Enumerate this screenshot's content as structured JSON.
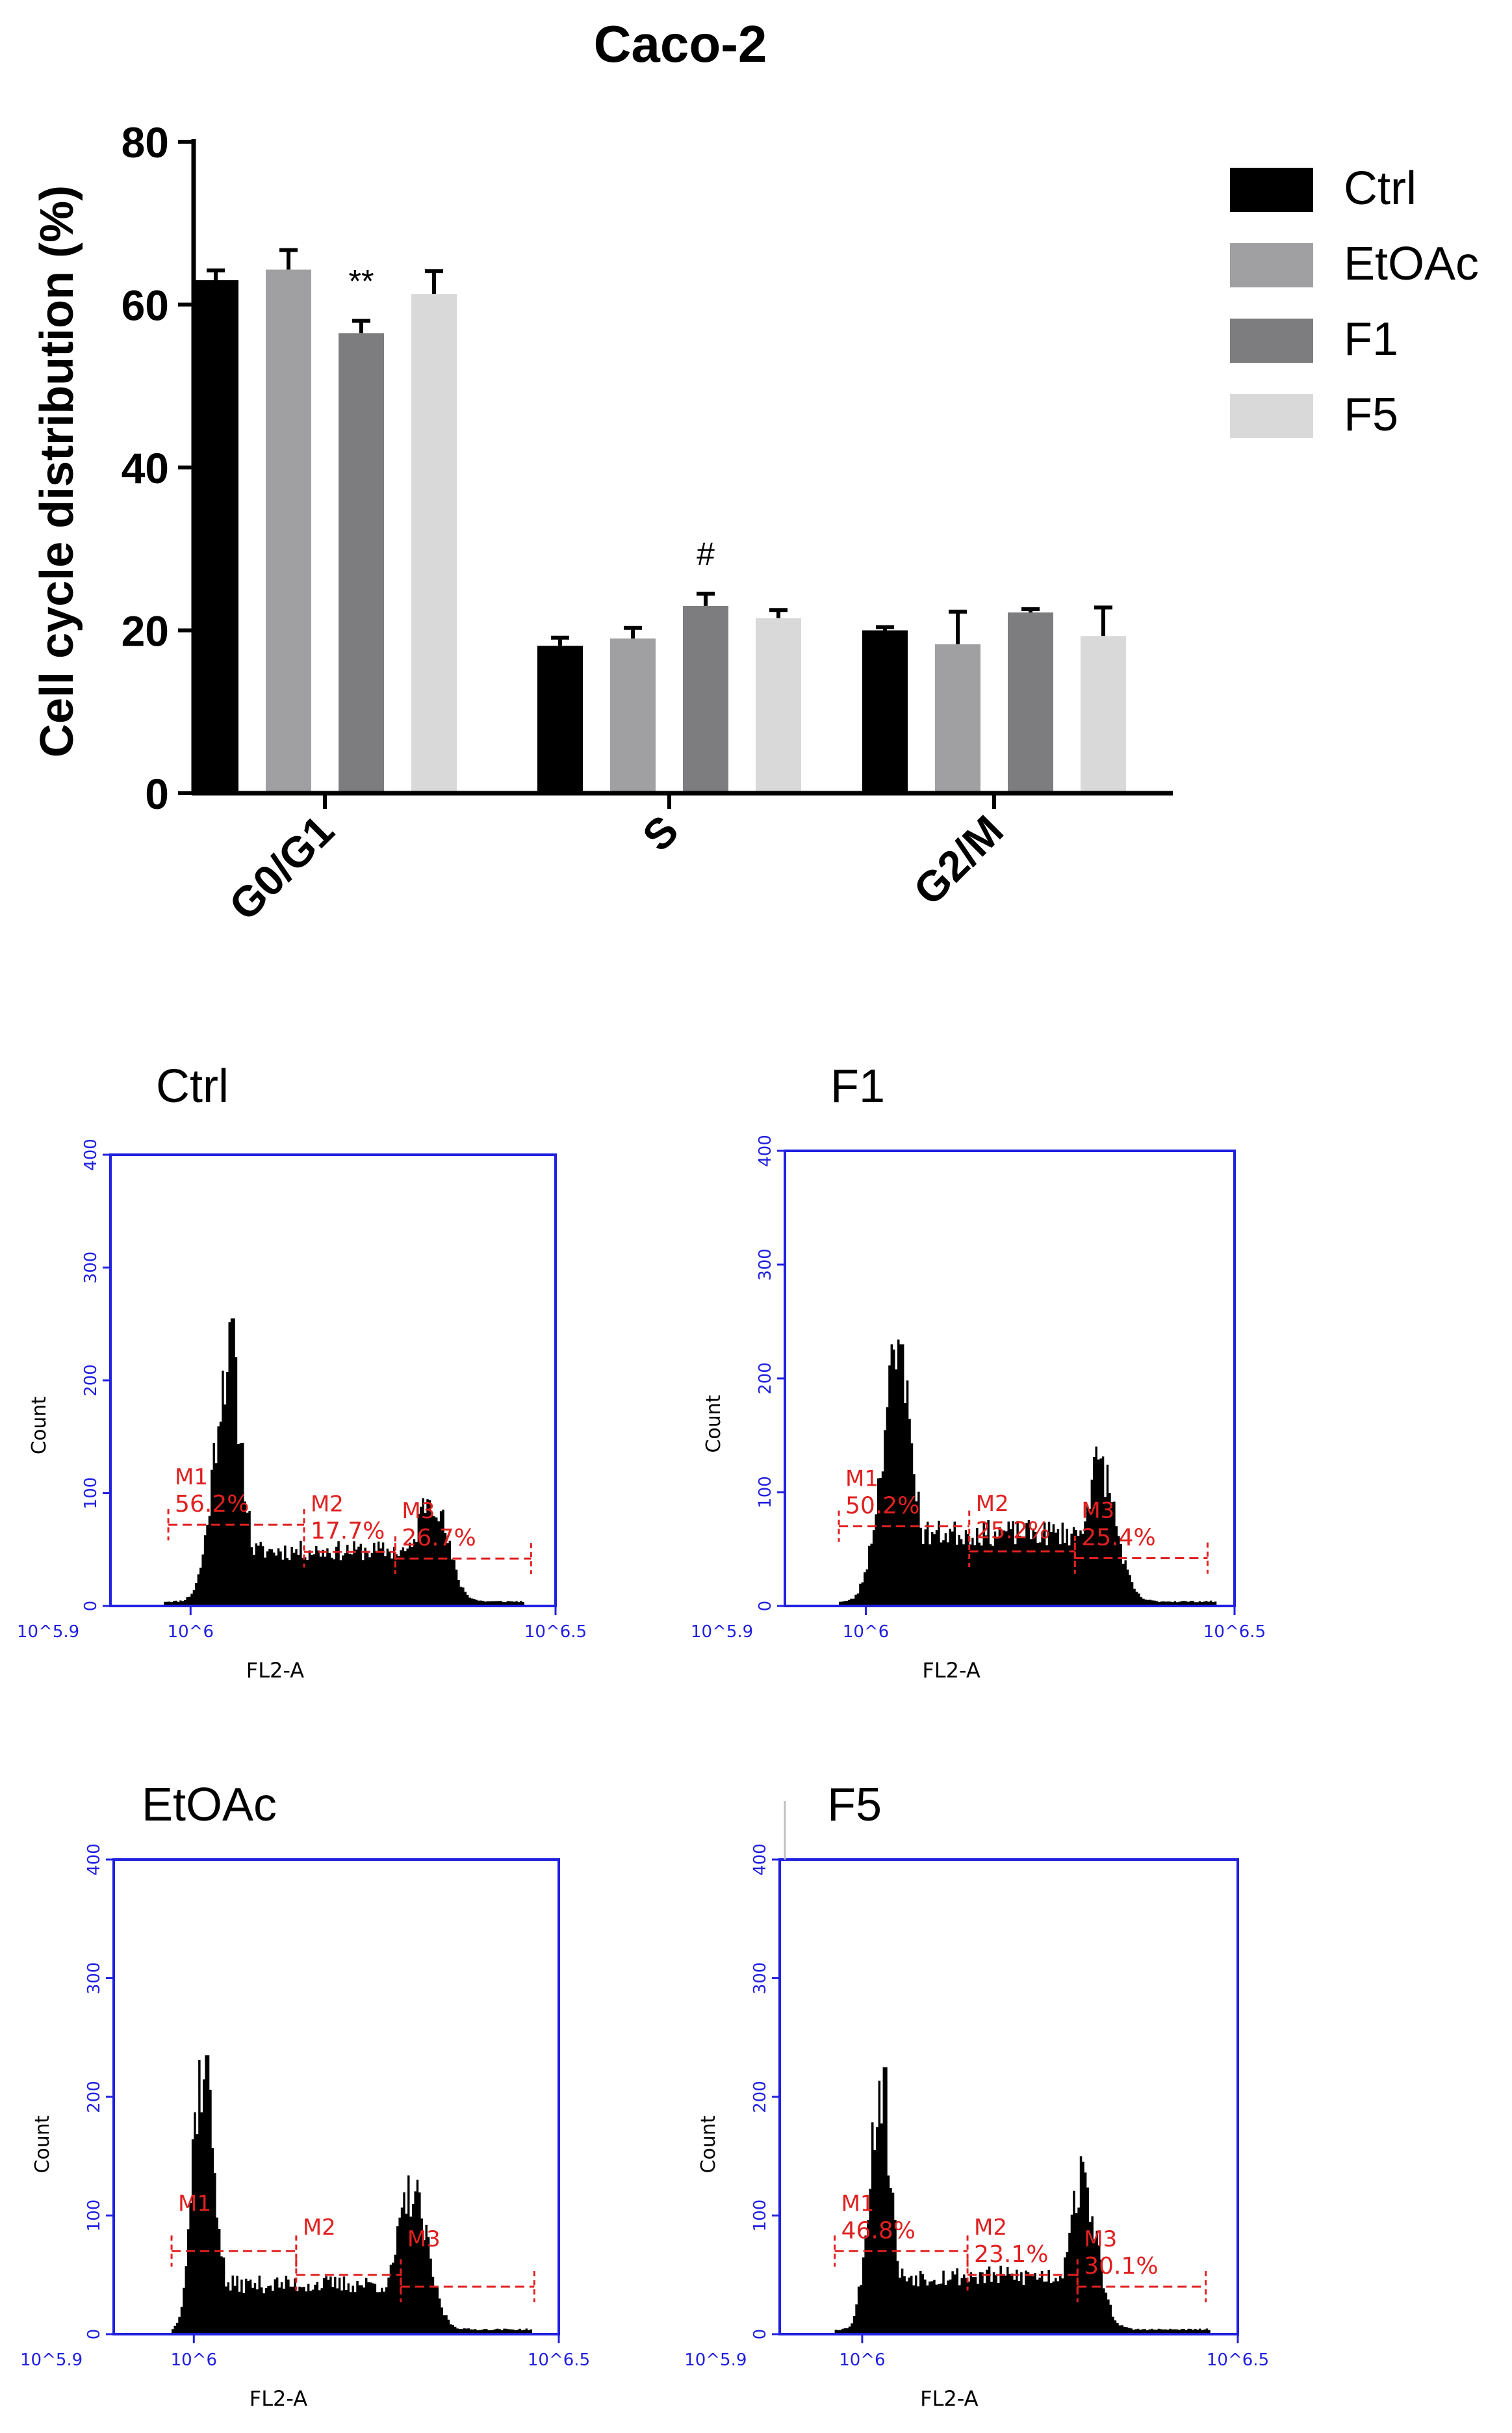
{
  "chart_data": [
    {
      "type": "bar",
      "title": "Caco-2",
      "ylabel": "Cell cycle distribution (%)",
      "xlabel": "",
      "ylim": [
        0,
        80
      ],
      "yticks": [
        0,
        20,
        40,
        60,
        80
      ],
      "categories": [
        "G0/G1",
        "S",
        "G2/M"
      ],
      "series": [
        {
          "name": "Ctrl",
          "color": "#000000",
          "values": [
            63.0,
            18.1,
            20.0
          ],
          "errors": [
            1.2,
            1.0,
            0.4
          ]
        },
        {
          "name": "EtOAc",
          "color": "#a0a0a3",
          "values": [
            64.3,
            19.0,
            18.3
          ],
          "errors": [
            2.4,
            1.3,
            4.0
          ]
        },
        {
          "name": "F1",
          "color": "#7d7d80",
          "values": [
            56.5,
            23.0,
            22.2
          ],
          "errors": [
            1.5,
            1.5,
            0.4
          ]
        },
        {
          "name": "F5",
          "color": "#d9d9d9",
          "values": [
            61.3,
            21.5,
            19.3
          ],
          "errors": [
            2.8,
            1.0,
            3.5
          ]
        }
      ],
      "annotations": [
        {
          "text": "**",
          "category": "G0/G1",
          "series": "F1"
        },
        {
          "text": "#",
          "category": "S",
          "series": "F1"
        }
      ],
      "legend": "right"
    },
    {
      "type": "histogram",
      "title": "Ctrl",
      "xlabel": "FL2-A",
      "ylabel": "Count",
      "ylim": [
        0,
        400
      ],
      "yticks": [
        "0",
        "100",
        "200",
        "300",
        "400"
      ],
      "xticks": [
        "10^5.9",
        "10^6",
        "10^6.5"
      ],
      "gates": [
        {
          "name": "M1",
          "pct": "56.2%"
        },
        {
          "name": "M2",
          "pct": "17.7%"
        },
        {
          "name": "M3",
          "pct": "26.7%"
        }
      ]
    },
    {
      "type": "histogram",
      "title": "F1",
      "xlabel": "FL2-A",
      "ylabel": "Count",
      "ylim": [
        0,
        400
      ],
      "yticks": [
        "0",
        "100",
        "200",
        "300",
        "400"
      ],
      "xticks": [
        "10^5.9",
        "10^6",
        "10^6.5"
      ],
      "gates": [
        {
          "name": "M1",
          "pct": "50.2%"
        },
        {
          "name": "M2",
          "pct": "25.2%"
        },
        {
          "name": "M3",
          "pct": "25.4%"
        }
      ]
    },
    {
      "type": "histogram",
      "title": "EtOAc",
      "xlabel": "FL2-A",
      "ylabel": "Count",
      "ylim": [
        0,
        400
      ],
      "yticks": [
        "0",
        "100",
        "200",
        "300",
        "400"
      ],
      "xticks": [
        "10^5.9",
        "10^6",
        "10^6.5"
      ],
      "gates": [
        {
          "name": "M1",
          "pct": ""
        },
        {
          "name": "M2",
          "pct": ""
        },
        {
          "name": "M3",
          "pct": ""
        }
      ]
    },
    {
      "type": "histogram",
      "title": "F5",
      "xlabel": "FL2-A",
      "ylabel": "Count",
      "ylim": [
        0,
        400
      ],
      "yticks": [
        "0",
        "100",
        "200",
        "300",
        "400"
      ],
      "xticks": [
        "10^5.9",
        "10^6",
        "10^6.5"
      ],
      "gates": [
        {
          "name": "M1",
          "pct": "46.8%"
        },
        {
          "name": "M2",
          "pct": "23.1%"
        },
        {
          "name": "M3",
          "pct": "30.1%"
        }
      ]
    }
  ]
}
